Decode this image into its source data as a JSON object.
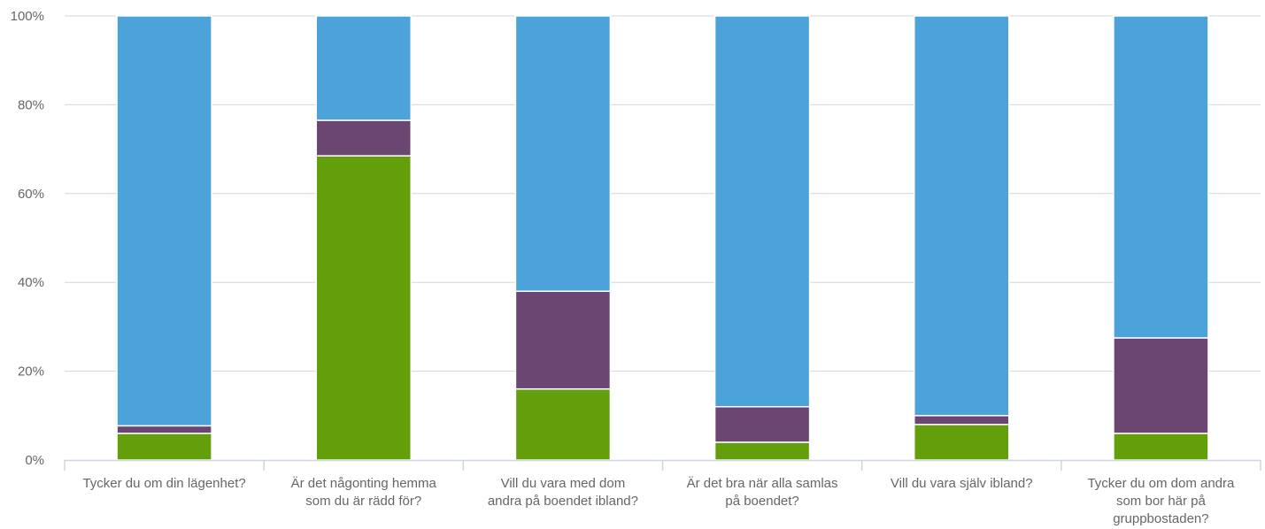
{
  "chart_data": {
    "type": "bar",
    "stacked": true,
    "percent": true,
    "categories": [
      [
        "Tycker du om din lägenhet?"
      ],
      [
        "Är det någonting hemma",
        "som du är rädd för?"
      ],
      [
        "Vill du vara med dom",
        "andra på boendet ibland?"
      ],
      [
        "Är det bra när alla samlas",
        "på boendet?"
      ],
      [
        "Vill du vara själv ibland?"
      ],
      [
        "Tycker du om dom andra",
        "som bor här på",
        "gruppbostaden?"
      ]
    ],
    "series": [
      {
        "color": "#639e0b",
        "values": [
          6,
          68.5,
          16,
          4,
          8,
          6
        ]
      },
      {
        "color": "#6b4672",
        "values": [
          1.7,
          8,
          22,
          8,
          2,
          21.5
        ]
      },
      {
        "color": "#4ba3d9",
        "values": [
          92.3,
          23.5,
          62,
          88,
          90,
          72.5
        ]
      }
    ],
    "yticks": [
      "0%",
      "20%",
      "40%",
      "60%",
      "80%",
      "100%"
    ],
    "ylim": [
      0,
      100
    ],
    "grid": true
  }
}
